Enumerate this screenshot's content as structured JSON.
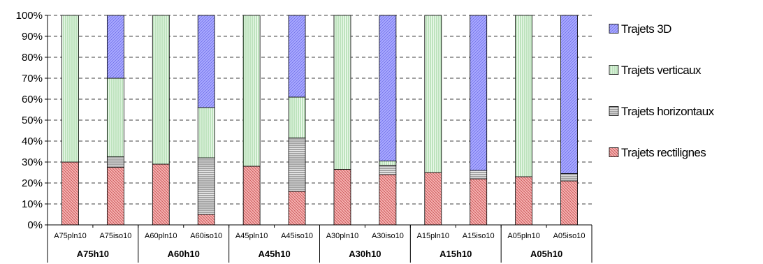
{
  "chart_data": {
    "type": "bar",
    "stacked": true,
    "title": "",
    "xlabel": "",
    "ylabel": "",
    "ylim": [
      0,
      100
    ],
    "y_ticks": [
      "0%",
      "10%",
      "20%",
      "30%",
      "40%",
      "50%",
      "60%",
      "70%",
      "80%",
      "90%",
      "100%"
    ],
    "grid": "horizontal dashed",
    "legend_position": "right",
    "categories": [
      "A75pln10",
      "A75iso10",
      "A60pln10",
      "A60iso10",
      "A45pln10",
      "A45iso10",
      "A30pln10",
      "A30iso10",
      "A15pln10",
      "A15iso10",
      "A05pln10",
      "A05iso10"
    ],
    "groups": [
      {
        "label": "A75h10",
        "categories": [
          "A75pln10",
          "A75iso10"
        ]
      },
      {
        "label": "A60h10",
        "categories": [
          "A60pln10",
          "A60iso10"
        ]
      },
      {
        "label": "A45h10",
        "categories": [
          "A45pln10",
          "A45iso10"
        ]
      },
      {
        "label": "A30h10",
        "categories": [
          "A30pln10",
          "A30iso10"
        ]
      },
      {
        "label": "A15h10",
        "categories": [
          "A15pln10",
          "A15iso10"
        ]
      },
      {
        "label": "A05h10",
        "categories": [
          "A05pln10",
          "A05iso10"
        ]
      }
    ],
    "series": [
      {
        "name": "Trajets rectilignes",
        "color": "#f4a6a6",
        "values": [
          30,
          27.5,
          29,
          5,
          28,
          16,
          26.5,
          24,
          25,
          22,
          23,
          21
        ]
      },
      {
        "name": "Trajets horizontaux",
        "color": "#cccccc",
        "values": [
          0,
          5,
          0,
          27,
          0,
          25.5,
          0,
          4.5,
          0,
          4,
          0,
          3.5
        ]
      },
      {
        "name": "Trajets verticaux",
        "color": "#c7ebc7",
        "values": [
          70,
          37.5,
          71,
          24,
          72,
          19.5,
          73.5,
          2,
          75,
          0,
          77,
          0
        ]
      },
      {
        "name": "Trajets 3D",
        "color": "#9999ff",
        "values": [
          0,
          30,
          0,
          44,
          0,
          39,
          0,
          69.5,
          0,
          74,
          0,
          75.5
        ]
      }
    ],
    "legend_order": [
      "Trajets 3D",
      "Trajets verticaux",
      "Trajets horizontaux",
      "Trajets rectilignes"
    ]
  }
}
